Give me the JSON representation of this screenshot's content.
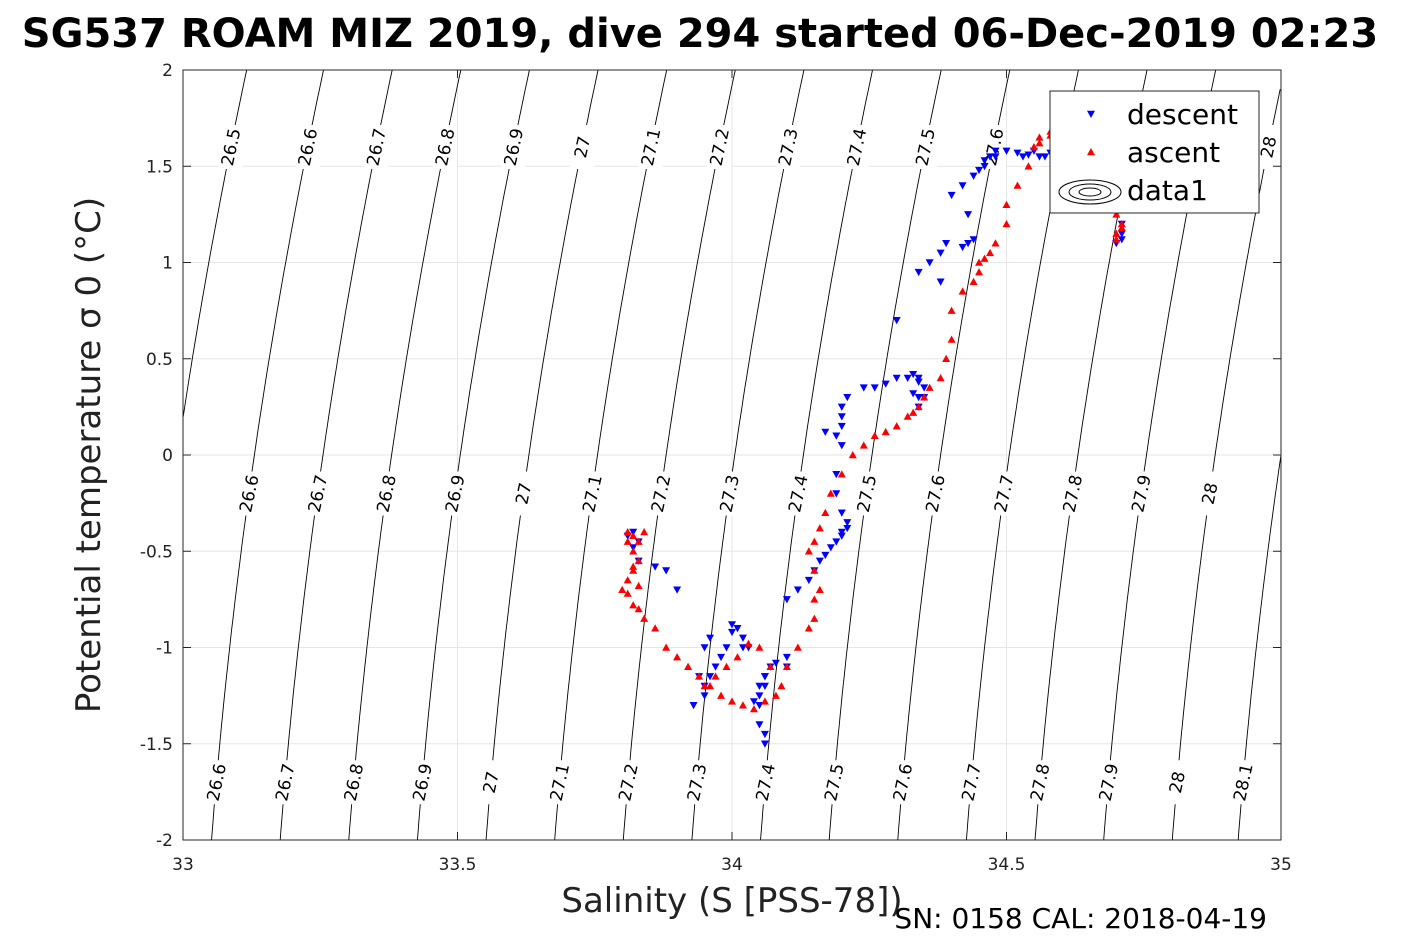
{
  "title": "SG537 ROAM MIZ 2019, dive 294 started 06-Dec-2019 02:23",
  "footer": "SN: 0158  CAL: 2018-04-19",
  "colors": {
    "descent": "#0000ff",
    "ascent": "#ff0000",
    "grid": "#e6e6e6",
    "axis": "#262626",
    "contour": "#000000"
  },
  "chart_data": {
    "type": "scatter",
    "title": "SG537 ROAM MIZ 2019, dive 294 started 06-Dec-2019 02:23",
    "xlabel": "Salinity (S [PSS-78])",
    "ylabel": "Potential temperature σ 0 (°C)",
    "xlim": [
      33,
      35
    ],
    "ylim": [
      -2,
      2
    ],
    "xticks": [
      33,
      33.5,
      34,
      34.5,
      35
    ],
    "xtick_labels": [
      "33",
      "33.5",
      "34",
      "34.5",
      "35"
    ],
    "yticks": [
      -2,
      -1.5,
      -1,
      -0.5,
      0,
      0.5,
      1,
      1.5,
      2
    ],
    "ytick_labels": [
      "-2",
      "-1.5",
      "-1",
      "-0.5",
      "0",
      "0.5",
      "1",
      "1.5",
      "2"
    ],
    "grid": true,
    "legend_position": "top-right",
    "legend": [
      "descent",
      "ascent",
      "data1"
    ],
    "contours": {
      "description": "potential density (sigma-0) isopycnals",
      "levels": [
        26.5,
        26.6,
        26.7,
        26.8,
        26.9,
        27,
        27.1,
        27.2,
        27.3,
        27.4,
        27.5,
        27.6,
        27.7,
        27.8,
        27.9,
        28,
        28.1
      ],
      "level_labels": [
        "26.5",
        "26.6",
        "26.7",
        "26.8",
        "26.9",
        "27",
        "27.1",
        "27.2",
        "27.3",
        "27.4",
        "27.5",
        "27.6",
        "27.7",
        "27.8",
        "27.9",
        "28",
        "28.1"
      ],
      "s_at_t0": [
        32.99,
        33.13,
        33.255,
        33.38,
        33.505,
        33.63,
        33.755,
        33.88,
        34.005,
        34.13,
        34.255,
        34.38,
        34.505,
        34.63,
        34.755,
        34.88,
        35.0
      ],
      "t_slope": 5.1,
      "t_curvature": 0.6
    },
    "series": [
      {
        "name": "descent",
        "marker": "triangle-down",
        "color": "#0000ff",
        "x": [
          34.06,
          34.06,
          34.05,
          34.05,
          34.06,
          34.06,
          34.07,
          34.08,
          34.1,
          34.1,
          34.06,
          34.05,
          34.05,
          34.04,
          34.03,
          34.02,
          34.02,
          34.01,
          34.0,
          34.0,
          33.99,
          33.98,
          33.97,
          33.96,
          33.95,
          33.95,
          33.93,
          33.94,
          33.95,
          33.96,
          33.9,
          33.88,
          33.86,
          33.83,
          33.82,
          33.83,
          33.81,
          33.82,
          34.1,
          34.12,
          34.14,
          34.15,
          34.16,
          34.17,
          34.18,
          34.19,
          34.2,
          34.2,
          34.21,
          34.21,
          34.2,
          34.19,
          34.19,
          34.2,
          34.19,
          34.2,
          34.2,
          34.17,
          34.2,
          34.21,
          34.24,
          34.26,
          34.28,
          34.3,
          34.32,
          34.33,
          34.34,
          34.35,
          34.35,
          34.34,
          34.33,
          34.34,
          34.34,
          34.3,
          34.34,
          34.36,
          34.38,
          34.39,
          34.38,
          34.42,
          34.43,
          34.44,
          34.43,
          34.4,
          34.42,
          34.44,
          34.45,
          34.46,
          34.46,
          34.47,
          34.48,
          34.48,
          34.5,
          34.52,
          34.53,
          34.54,
          34.55,
          34.56,
          34.57,
          34.58,
          34.6,
          34.61,
          34.62,
          34.63,
          34.64,
          34.65,
          34.66,
          34.68,
          34.7,
          34.71,
          34.71,
          34.71,
          34.7
        ],
        "y": [
          -1.5,
          -1.45,
          -1.4,
          -1.3,
          -1.2,
          -1.15,
          -1.1,
          -1.08,
          -1.05,
          -1.1,
          -1.15,
          -1.2,
          -1.25,
          -1.28,
          -1.0,
          -1.0,
          -0.95,
          -0.9,
          -0.88,
          -0.92,
          -1.0,
          -1.05,
          -1.1,
          -1.15,
          -1.2,
          -1.25,
          -1.3,
          -1.15,
          -1.0,
          -0.95,
          -0.7,
          -0.6,
          -0.58,
          -0.55,
          -0.48,
          -0.45,
          -0.42,
          -0.4,
          -0.75,
          -0.7,
          -0.65,
          -0.6,
          -0.55,
          -0.52,
          -0.48,
          -0.45,
          -0.42,
          -0.4,
          -0.38,
          -0.35,
          -0.3,
          -0.2,
          -0.1,
          0.05,
          0.1,
          0.15,
          0.2,
          0.12,
          0.25,
          0.3,
          0.35,
          0.35,
          0.37,
          0.4,
          0.4,
          0.42,
          0.4,
          0.35,
          0.3,
          0.25,
          0.32,
          0.3,
          0.38,
          0.7,
          0.95,
          1.0,
          1.05,
          1.1,
          0.9,
          1.08,
          1.1,
          1.12,
          1.25,
          1.35,
          1.4,
          1.45,
          1.48,
          1.5,
          1.53,
          1.55,
          1.55,
          1.58,
          1.58,
          1.57,
          1.55,
          1.56,
          1.58,
          1.55,
          1.55,
          1.57,
          1.6,
          1.55,
          1.5,
          1.48,
          1.45,
          1.42,
          1.4,
          1.35,
          1.3,
          1.2,
          1.15,
          1.12,
          1.1
        ]
      },
      {
        "name": "ascent",
        "marker": "triangle-up",
        "color": "#ff0000",
        "x": [
          33.81,
          33.82,
          33.83,
          33.84,
          33.82,
          33.83,
          33.82,
          33.81,
          33.8,
          33.81,
          33.82,
          33.83,
          33.84,
          33.83,
          33.82,
          33.81,
          33.86,
          33.88,
          33.9,
          33.92,
          33.94,
          33.96,
          33.98,
          34.0,
          34.02,
          34.04,
          34.06,
          34.08,
          34.09,
          34.07,
          34.05,
          34.03,
          34.01,
          33.99,
          33.97,
          33.95,
          34.1,
          34.12,
          34.14,
          34.15,
          34.15,
          34.16,
          34.15,
          34.14,
          34.15,
          34.16,
          34.17,
          34.18,
          34.2,
          34.22,
          34.24,
          34.26,
          34.28,
          34.3,
          34.32,
          34.33,
          34.34,
          34.35,
          34.36,
          34.38,
          34.39,
          34.4,
          34.4,
          34.42,
          34.44,
          34.45,
          34.45,
          34.46,
          34.47,
          34.48,
          34.5,
          34.5,
          34.52,
          34.54,
          34.55,
          34.56,
          34.58,
          34.6,
          34.62,
          34.64,
          34.66,
          34.68,
          34.7,
          34.7,
          34.71,
          34.71,
          34.7,
          34.7,
          34.6,
          34.58,
          34.56
        ],
        "y": [
          -0.4,
          -0.42,
          -0.45,
          -0.4,
          -0.5,
          -0.55,
          -0.6,
          -0.65,
          -0.7,
          -0.72,
          -0.78,
          -0.8,
          -0.85,
          -0.68,
          -0.58,
          -0.45,
          -0.9,
          -1.0,
          -1.05,
          -1.1,
          -1.15,
          -1.2,
          -1.25,
          -1.28,
          -1.3,
          -1.32,
          -1.28,
          -1.25,
          -1.2,
          -1.1,
          -1.0,
          -0.98,
          -1.05,
          -1.1,
          -1.15,
          -1.2,
          -1.1,
          -1.0,
          -0.9,
          -0.85,
          -0.75,
          -0.7,
          -0.6,
          -0.5,
          -0.45,
          -0.38,
          -0.3,
          -0.2,
          -0.1,
          0.0,
          0.05,
          0.1,
          0.12,
          0.15,
          0.2,
          0.22,
          0.25,
          0.3,
          0.35,
          0.4,
          0.5,
          0.6,
          0.75,
          0.85,
          0.9,
          0.95,
          1.0,
          1.02,
          1.05,
          1.1,
          1.2,
          1.3,
          1.4,
          1.5,
          1.6,
          1.65,
          1.68,
          1.7,
          1.65,
          1.55,
          1.45,
          1.35,
          1.3,
          1.25,
          1.2,
          1.18,
          1.15,
          1.12,
          1.68,
          1.66,
          1.62
        ]
      }
    ]
  }
}
